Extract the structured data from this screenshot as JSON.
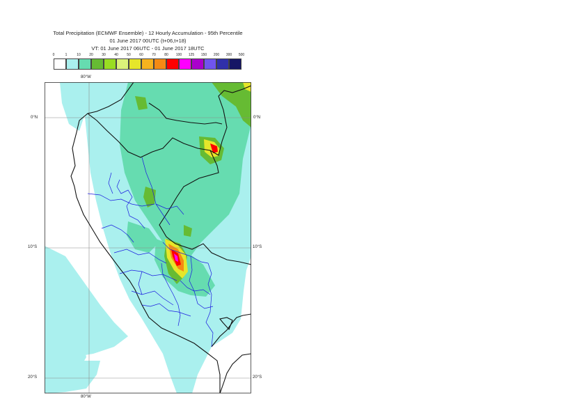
{
  "title": {
    "line1": "Total Precipitation (ECMWF Ensemble) - 12 Hourly Accumulation - 95th Percentile",
    "line2": "01 June 2017 00UTC (t+06,t+18)",
    "line3": "VT: 01 June 2017 06UTC - 01 June 2017 18UTC"
  },
  "colorbar": {
    "levels": [
      "0",
      "1",
      "10",
      "20",
      "30",
      "40",
      "50",
      "60",
      "70",
      "80",
      "100",
      "125",
      "150",
      "200",
      "300",
      "500"
    ],
    "colors": [
      "#ffffff",
      "#aaf0ee",
      "#66dcb0",
      "#66bb33",
      "#99dd22",
      "#dcf27a",
      "#e6e62a",
      "#f7b31e",
      "#f58a14",
      "#ff0000",
      "#ff00ff",
      "#aa00cc",
      "#7055ee",
      "#3030aa",
      "#151565"
    ]
  },
  "axes": {
    "lon_label_top": "80°W",
    "lon_label_bottom": "80°W",
    "lat_labels": [
      "0°N",
      "10°S",
      "20°S"
    ]
  }
}
